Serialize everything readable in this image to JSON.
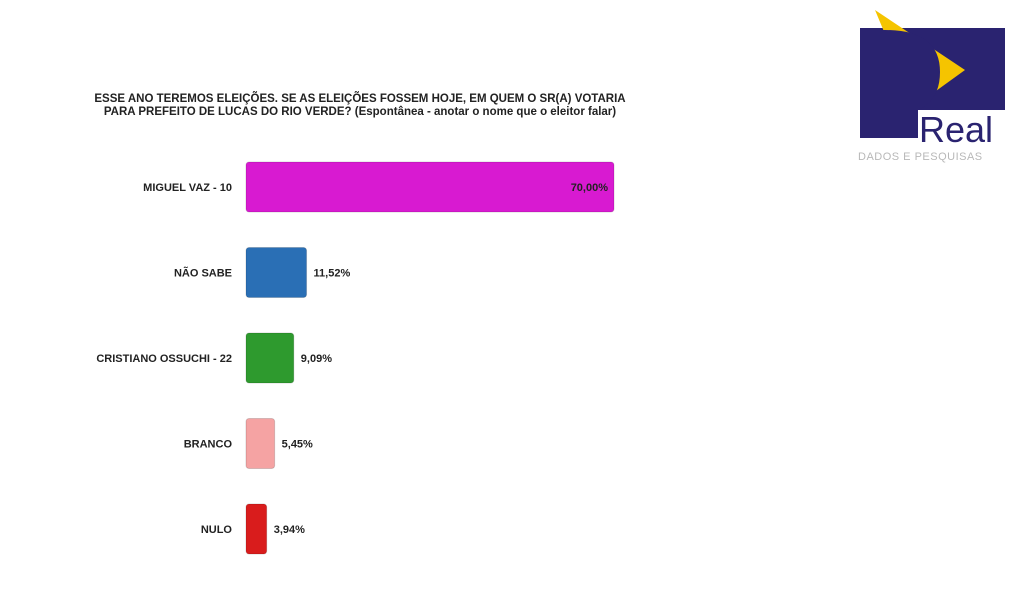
{
  "logo": {
    "word": "Real",
    "tagline": "DADOS E PESQUISAS",
    "colors": {
      "navy": "#2a2370",
      "yellow": "#f5c400"
    }
  },
  "chart_data": {
    "type": "bar",
    "orientation": "horizontal",
    "title": "ESSE ANO TEREMOS ELEIÇÕES. SE AS ELEIÇÕES FOSSEM HOJE, EM QUEM O SR(A) VOTARIA PARA PREFEITO DE LUCAS DO RIO VERDE?",
    "title_lines": [
      "ESSE ANO TEREMOS ELEIÇÕES. SE AS ELEIÇÕES FOSSEM HOJE, EM QUEM O SR(A) VOTARIA",
      "PARA PREFEITO DE LUCAS DO RIO VERDE?"
    ],
    "subtitle": "(Espontânea - anotar o nome que o eleitor falar)",
    "categories": [
      "MIGUEL VAZ - 10",
      "NÃO SABE",
      "CRISTIANO OSSUCHI - 22",
      "BRANCO",
      "NULO"
    ],
    "values": [
      70.0,
      11.52,
      9.09,
      5.45,
      3.94
    ],
    "value_labels": [
      "70,00%",
      "11,52%",
      "9,09%",
      "5,45%",
      "3,94%"
    ],
    "colors": [
      "#d81ad1",
      "#2a6fb5",
      "#2e9a2e",
      "#f5a3a3",
      "#d91c1c"
    ],
    "xlim": [
      0,
      70
    ],
    "grid": false,
    "xlabel": "",
    "ylabel": ""
  }
}
